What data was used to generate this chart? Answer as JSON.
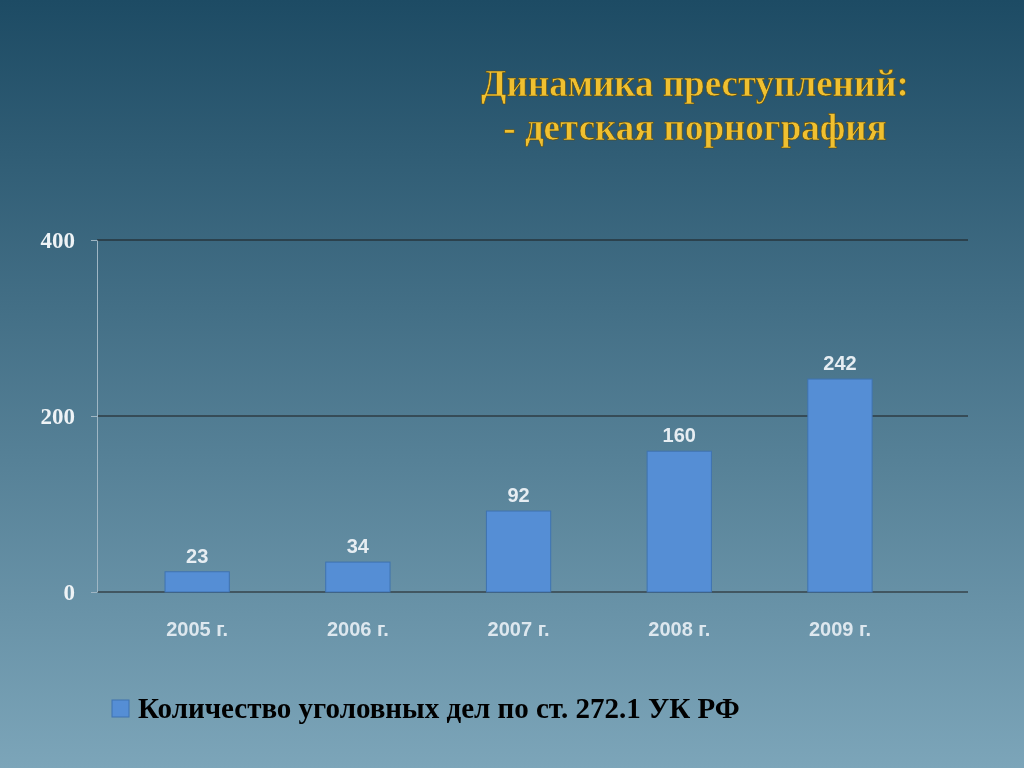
{
  "chart_data": {
    "type": "bar",
    "title": "Динамика преступлений:\n- детская порнография",
    "categories": [
      "2005 г.",
      "2006 г.",
      "2007 г.",
      "2008 г.",
      "2009 г."
    ],
    "series": [
      {
        "name": "Количество уголовных дел по ст. 272.1 УК РФ",
        "color": "#558ed5",
        "values": [
          23,
          34,
          92,
          160,
          242
        ]
      }
    ],
    "ylim": [
      0,
      400
    ],
    "yticks": [
      0,
      200,
      400
    ],
    "grid": "y",
    "data_labels": true,
    "legend": "bottom left"
  }
}
